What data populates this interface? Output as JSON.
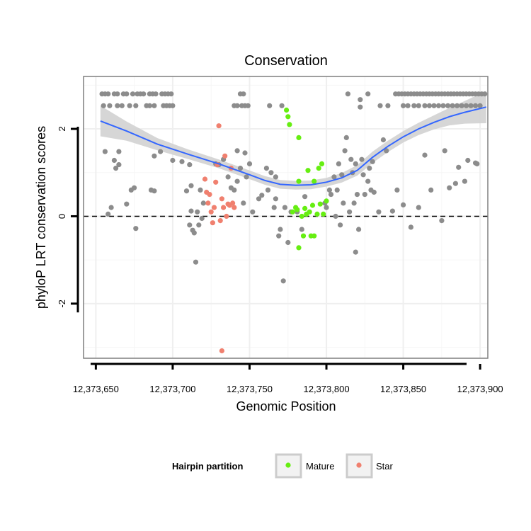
{
  "chart_data": {
    "type": "scatter",
    "title": "Conservation",
    "xlabel": "Genomic Position",
    "ylabel": "phyloP LRT conservation scores",
    "xlim": [
      12373642,
      12373905
    ],
    "ylim": [
      -3.25,
      3.2
    ],
    "x_ticks": [
      12373650,
      12373700,
      12373750,
      12373800,
      12373850,
      12373900
    ],
    "x_tick_labels": [
      "12,373,650",
      "12,373,700",
      "12,373,750",
      "12,373,800",
      "12,373,850",
      "12,373,900"
    ],
    "y_ticks": [
      -2,
      0,
      2
    ],
    "y_tick_labels": [
      "-2",
      "0",
      "2"
    ],
    "grid": true,
    "reference_line": {
      "y": 0,
      "style": "dashed"
    },
    "legend": {
      "title": "Hairpin partition",
      "position": "bottom",
      "entries": [
        {
          "name": "Mature",
          "color": "#66ee11"
        },
        {
          "name": "Star",
          "color": "#f0806f"
        }
      ]
    },
    "colors": {
      "other": "#8c8c8c",
      "Mature": "#66ee11",
      "Star": "#f0806f",
      "smooth": "#3366ff",
      "band": "#d2d2d2"
    },
    "series": [
      {
        "group": "other",
        "points": [
          [
            12373654,
            2.8
          ],
          [
            12373656,
            2.8
          ],
          [
            12373658,
            2.8
          ],
          [
            12373662,
            2.8
          ],
          [
            12373664,
            2.8
          ],
          [
            12373668,
            2.8
          ],
          [
            12373670,
            2.8
          ],
          [
            12373674,
            2.8
          ],
          [
            12373677,
            2.8
          ],
          [
            12373679,
            2.8
          ],
          [
            12373681,
            2.8
          ],
          [
            12373685,
            2.8
          ],
          [
            12373687,
            2.8
          ],
          [
            12373689,
            2.8
          ],
          [
            12373693,
            2.8
          ],
          [
            12373695,
            2.8
          ],
          [
            12373697,
            2.8
          ],
          [
            12373699,
            2.8
          ],
          [
            12373655,
            2.53
          ],
          [
            12373659,
            2.53
          ],
          [
            12373664,
            2.53
          ],
          [
            12373667,
            2.53
          ],
          [
            12373672,
            2.53
          ],
          [
            12373676,
            2.53
          ],
          [
            12373683,
            2.53
          ],
          [
            12373685,
            2.53
          ],
          [
            12373688,
            2.53
          ],
          [
            12373694,
            2.53
          ],
          [
            12373696,
            2.53
          ],
          [
            12373698,
            2.53
          ],
          [
            12373700,
            2.53
          ],
          [
            12373744,
            2.8
          ],
          [
            12373746,
            2.8
          ],
          [
            12373745,
            2.53
          ],
          [
            12373747,
            2.53
          ],
          [
            12373749,
            2.53
          ],
          [
            12373740,
            2.53
          ],
          [
            12373742,
            2.53
          ],
          [
            12373763,
            2.53
          ],
          [
            12373771,
            2.53
          ],
          [
            12373814,
            2.8
          ],
          [
            12373822,
            2.67
          ],
          [
            12373827,
            2.8
          ],
          [
            12373835,
            2.53
          ],
          [
            12373840,
            2.53
          ],
          [
            12373845,
            2.8
          ],
          [
            12373847,
            2.8
          ],
          [
            12373849,
            2.8
          ],
          [
            12373851,
            2.8
          ],
          [
            12373853,
            2.8
          ],
          [
            12373855,
            2.8
          ],
          [
            12373857,
            2.8
          ],
          [
            12373859,
            2.8
          ],
          [
            12373861,
            2.8
          ],
          [
            12373863,
            2.8
          ],
          [
            12373865,
            2.8
          ],
          [
            12373867,
            2.8
          ],
          [
            12373869,
            2.8
          ],
          [
            12373871,
            2.8
          ],
          [
            12373873,
            2.8
          ],
          [
            12373875,
            2.8
          ],
          [
            12373877,
            2.8
          ],
          [
            12373879,
            2.8
          ],
          [
            12373881,
            2.8
          ],
          [
            12373883,
            2.8
          ],
          [
            12373885,
            2.8
          ],
          [
            12373887,
            2.8
          ],
          [
            12373889,
            2.8
          ],
          [
            12373891,
            2.8
          ],
          [
            12373893,
            2.8
          ],
          [
            12373895,
            2.8
          ],
          [
            12373897,
            2.8
          ],
          [
            12373899,
            2.8
          ],
          [
            12373901,
            2.8
          ],
          [
            12373903,
            2.8
          ],
          [
            12373850,
            2.53
          ],
          [
            12373853,
            2.53
          ],
          [
            12373857,
            2.53
          ],
          [
            12373860,
            2.53
          ],
          [
            12373864,
            2.53
          ],
          [
            12373867,
            2.53
          ],
          [
            12373870,
            2.53
          ],
          [
            12373873,
            2.53
          ],
          [
            12373876,
            2.53
          ],
          [
            12373879,
            2.53
          ],
          [
            12373882,
            2.53
          ],
          [
            12373885,
            2.53
          ],
          [
            12373888,
            2.53
          ],
          [
            12373891,
            2.53
          ],
          [
            12373894,
            2.53
          ],
          [
            12373897,
            2.53
          ],
          [
            12373900,
            2.53
          ],
          [
            12373656,
            1.48
          ],
          [
            12373665,
            1.48
          ],
          [
            12373662,
            1.28
          ],
          [
            12373663,
            1.1
          ],
          [
            12373665,
            1.18
          ],
          [
            12373658,
            0.05
          ],
          [
            12373660,
            0.2
          ],
          [
            12373670,
            0.28
          ],
          [
            12373673,
            0.6
          ],
          [
            12373675,
            0.65
          ],
          [
            12373676,
            -0.28
          ],
          [
            12373686,
            0.6
          ],
          [
            12373688,
            0.58
          ],
          [
            12373688,
            1.38
          ],
          [
            12373692,
            1.48
          ],
          [
            12373700,
            1.28
          ],
          [
            12373706,
            1.25
          ],
          [
            12373709,
            0.58
          ],
          [
            12373711,
            1.18
          ],
          [
            12373712,
            0.7
          ],
          [
            12373711,
            -0.2
          ],
          [
            12373712,
            0.12
          ],
          [
            12373713,
            -0.32
          ],
          [
            12373714,
            -0.38
          ],
          [
            12373715,
            -1.05
          ],
          [
            12373716,
            0.1
          ],
          [
            12373717,
            -0.2
          ],
          [
            12373718,
            0.6
          ],
          [
            12373719,
            -0.05
          ],
          [
            12373720,
            0.3
          ],
          [
            12373728,
            1.2
          ],
          [
            12373730,
            1.18
          ],
          [
            12373733,
            1.3
          ],
          [
            12373736,
            0.9
          ],
          [
            12373738,
            0.65
          ],
          [
            12373742,
            1.5
          ],
          [
            12373744,
            1.1
          ],
          [
            12373748,
            0.9
          ],
          [
            12373740,
            0.6
          ],
          [
            12373742,
            0.8
          ],
          [
            12373746,
            0.3
          ],
          [
            12373747,
            1.45
          ],
          [
            12373750,
            1.2
          ],
          [
            12373752,
            0.1
          ],
          [
            12373756,
            0.4
          ],
          [
            12373758,
            0.48
          ],
          [
            12373761,
            1.1
          ],
          [
            12373762,
            0.6
          ],
          [
            12373764,
            1.0
          ],
          [
            12373766,
            0.2
          ],
          [
            12373767,
            0.4
          ],
          [
            12373767,
            0.9
          ],
          [
            12373769,
            -0.45
          ],
          [
            12373772,
            -1.48
          ],
          [
            12373770,
            -0.3
          ],
          [
            12373773,
            0.2
          ],
          [
            12373775,
            -0.6
          ],
          [
            12373777,
            0.1
          ],
          [
            12373781,
            0.1
          ],
          [
            12373784,
            -0.3
          ],
          [
            12373786,
            0.45
          ],
          [
            12373799,
            0.3
          ],
          [
            12373800,
            0.2
          ],
          [
            12373802,
            0.6
          ],
          [
            12373803,
            0.5
          ],
          [
            12373805,
            0.9
          ],
          [
            12373806,
            0.0
          ],
          [
            12373807,
            0.6
          ],
          [
            12373808,
            1.2
          ],
          [
            12373809,
            -0.2
          ],
          [
            12373810,
            0.95
          ],
          [
            12373811,
            0.3
          ],
          [
            12373812,
            1.5
          ],
          [
            12373813,
            1.8
          ],
          [
            12373815,
            0.1
          ],
          [
            12373816,
            1.3
          ],
          [
            12373817,
            1.0
          ],
          [
            12373818,
            0.3
          ],
          [
            12373819,
            -0.82
          ],
          [
            12373819,
            1.2
          ],
          [
            12373820,
            0.5
          ],
          [
            12373821,
            -0.3
          ],
          [
            12373822,
            2.5
          ],
          [
            12373823,
            1.3
          ],
          [
            12373824,
            0.95
          ],
          [
            12373825,
            0.5
          ],
          [
            12373827,
            0.8
          ],
          [
            12373828,
            1.1
          ],
          [
            12373829,
            0.6
          ],
          [
            12373830,
            1.25
          ],
          [
            12373831,
            0.55
          ],
          [
            12373834,
            0.1
          ],
          [
            12373837,
            1.75
          ],
          [
            12373839,
            1.5
          ],
          [
            12373843,
            0.12
          ],
          [
            12373846,
            0.6
          ],
          [
            12373850,
            0.26
          ],
          [
            12373855,
            -0.25
          ],
          [
            12373860,
            0.2
          ],
          [
            12373864,
            1.4
          ],
          [
            12373868,
            0.6
          ],
          [
            12373875,
            -0.1
          ],
          [
            12373877,
            1.5
          ],
          [
            12373880,
            0.65
          ],
          [
            12373884,
            0.75
          ],
          [
            12373886,
            1.12
          ],
          [
            12373890,
            0.8
          ],
          [
            12373892,
            1.28
          ],
          [
            12373897,
            1.22
          ],
          [
            12373898,
            1.2
          ]
        ]
      },
      {
        "group": "Mature",
        "points": [
          [
            12373774,
            2.43
          ],
          [
            12373775,
            2.28
          ],
          [
            12373776,
            2.1
          ],
          [
            12373782,
            1.8
          ],
          [
            12373788,
            1.05
          ],
          [
            12373792,
            0.8
          ],
          [
            12373795,
            1.1
          ],
          [
            12373797,
            1.2
          ],
          [
            12373778,
            0.1
          ],
          [
            12373780,
            0.2
          ],
          [
            12373781,
            0.15
          ],
          [
            12373782,
            0.8
          ],
          [
            12373784,
            0.0
          ],
          [
            12373785,
            -0.45
          ],
          [
            12373786,
            0.18
          ],
          [
            12373787,
            0.05
          ],
          [
            12373789,
            0.1
          ],
          [
            12373790,
            -0.45
          ],
          [
            12373791,
            0.25
          ],
          [
            12373792,
            -0.45
          ],
          [
            12373794,
            0.05
          ],
          [
            12373796,
            0.28
          ],
          [
            12373798,
            0.05
          ],
          [
            12373800,
            0.35
          ],
          [
            12373782,
            -0.72
          ]
        ]
      },
      {
        "group": "Star",
        "points": [
          [
            12373721,
            0.85
          ],
          [
            12373722,
            0.55
          ],
          [
            12373723,
            0.3
          ],
          [
            12373724,
            0.5
          ],
          [
            12373725,
            0.1
          ],
          [
            12373726,
            -0.15
          ],
          [
            12373727,
            0.2
          ],
          [
            12373728,
            0.78
          ],
          [
            12373729,
            1.18
          ],
          [
            12373730,
            2.07
          ],
          [
            12373731,
            -0.1
          ],
          [
            12373732,
            0.4
          ],
          [
            12373733,
            0.2
          ],
          [
            12373734,
            1.38
          ],
          [
            12373735,
            0.0
          ],
          [
            12373736,
            0.28
          ],
          [
            12373737,
            0.25
          ],
          [
            12373738,
            1.1
          ],
          [
            12373739,
            0.3
          ],
          [
            12373740,
            0.2
          ],
          [
            12373732,
            -3.08
          ]
        ]
      }
    ],
    "smooth_line": {
      "x": [
        12373653,
        12373670,
        12373690,
        12373710,
        12373730,
        12373750,
        12373760,
        12373770,
        12373780,
        12373790,
        12373800,
        12373810,
        12373820,
        12373830,
        12373840,
        12373850,
        12373860,
        12373870,
        12373880,
        12373890,
        12373904
      ],
      "y": [
        2.18,
        1.95,
        1.65,
        1.42,
        1.2,
        0.95,
        0.82,
        0.73,
        0.71,
        0.72,
        0.78,
        0.88,
        1.05,
        1.35,
        1.6,
        1.82,
        2.0,
        2.15,
        2.28,
        2.38,
        2.5
      ],
      "ci_halfwidth": [
        0.35,
        0.22,
        0.14,
        0.11,
        0.1,
        0.1,
        0.1,
        0.1,
        0.1,
        0.1,
        0.1,
        0.11,
        0.12,
        0.13,
        0.13,
        0.13,
        0.14,
        0.16,
        0.2,
        0.26,
        0.37
      ]
    }
  }
}
